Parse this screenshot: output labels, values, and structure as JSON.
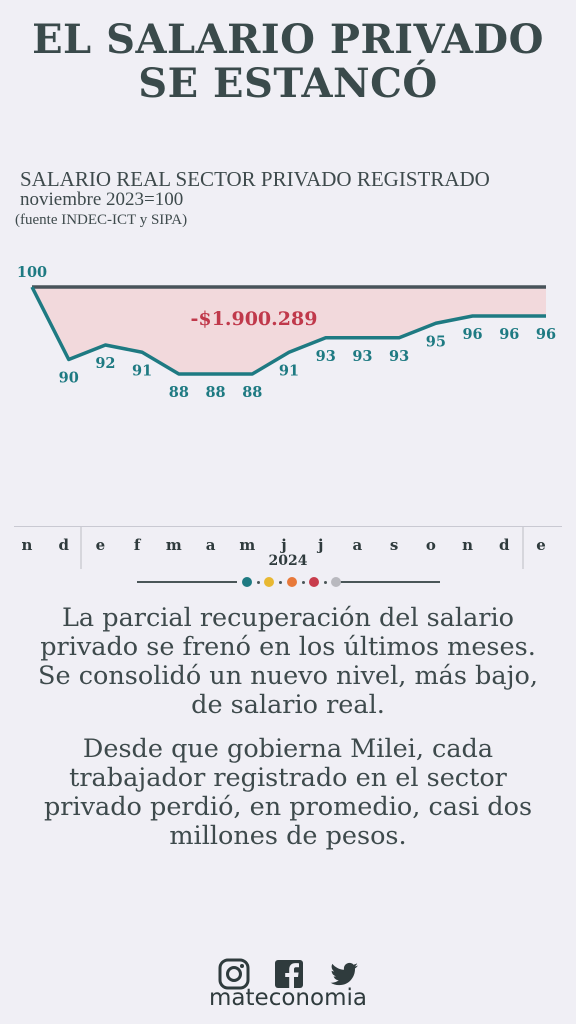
{
  "title": {
    "line1": "EL SALARIO PRIVADO",
    "line2": "SE ESTANCÓ"
  },
  "subtitle": "SALARIO REAL SECTOR PRIVADO REGISTRADO",
  "base": "noviembre 2023=100",
  "source": "(fuente INDEC-ICT y SIPA)",
  "chart_data": {
    "type": "line",
    "categories": [
      "n",
      "d",
      "e",
      "f",
      "m",
      "a",
      "m",
      "j",
      "j",
      "a",
      "s",
      "o",
      "n",
      "d",
      "e"
    ],
    "year_label": "2024",
    "series": [
      {
        "values": [
          100,
          90,
          92,
          91,
          88,
          88,
          88,
          91,
          93,
          93,
          93,
          95,
          96,
          96,
          96
        ]
      }
    ],
    "reference_value": 100,
    "reference_label": "100",
    "point_labels": [
      "100",
      "90",
      "92",
      "91",
      "88",
      "88",
      "88",
      "91",
      "93",
      "93",
      "93",
      "95",
      "96",
      "96",
      "96"
    ],
    "annotation": "-$1.900.289",
    "colors": {
      "line": "#1e7a82",
      "reference": "#48535a",
      "fill": "#f2d9dc",
      "annotation": "#c0394b",
      "labels": "#1e7a82"
    }
  },
  "legend_dots": [
    "#1e7a82",
    "#e8b832",
    "#e8793a",
    "#c83c4c",
    "#b9b9bf"
  ],
  "paragraphs": [
    "La parcial recuperación del salario privado se frenó en los últimos meses. Se consolidó un nuevo nivel, más bajo, de salario real.",
    "Desde que gobierna Milei, cada trabajador registrado en el sector privado perdió, en promedio, casi dos millones de pesos."
  ],
  "social_icons": [
    "instagram-icon",
    "facebook-icon",
    "twitter-icon"
  ],
  "brand": "mateconomia"
}
